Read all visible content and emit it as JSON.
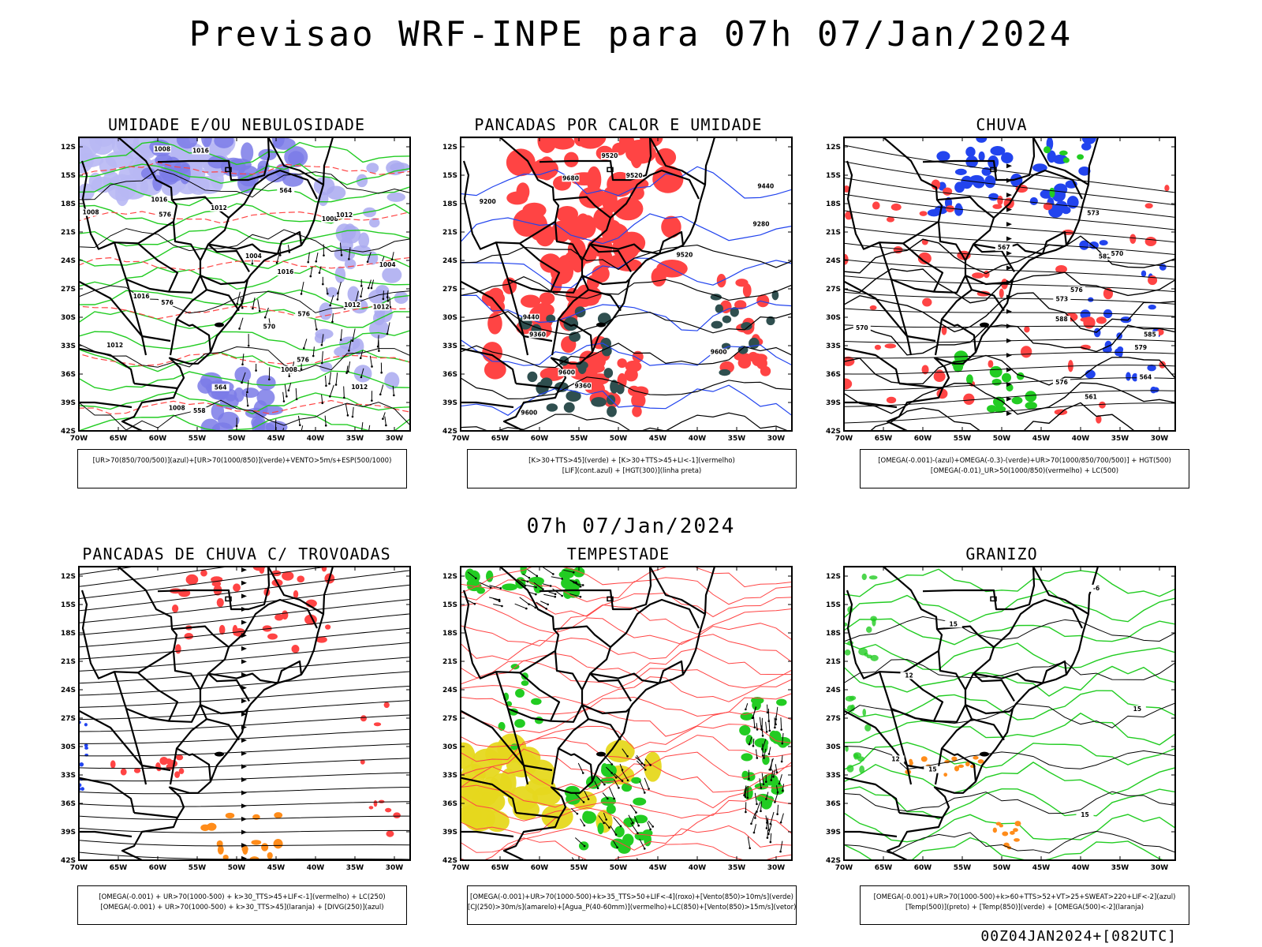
{
  "header": {
    "title": "Previsao WRF-INPE  para 07h 07/Jan/2024",
    "mid_time": "07h 07/Jan/2024",
    "run": "00Z04JAN2024+[082UTC]"
  },
  "axes": {
    "lat_labels": [
      "12S",
      "15S",
      "18S",
      "21S",
      "24S",
      "27S",
      "30S",
      "33S",
      "36S",
      "39S",
      "42S"
    ],
    "lon_labels": [
      "70W",
      "65W",
      "60W",
      "55W",
      "50W",
      "45W",
      "40W",
      "35W",
      "30W"
    ]
  },
  "panels": [
    {
      "id": "umidade",
      "title": "UMIDADE E/OU NEBULOSIDADE",
      "legend": [
        "[UR>70(850/700/500)](azul)+[UR>70(1000/850)](verde)+VENTO>5m/s+ESP(500/1000)"
      ],
      "contour_labels": [
        "1012",
        "1008",
        "1008",
        "1012",
        "1016",
        "1008",
        "1004",
        "1012",
        "1004",
        "1016",
        "1008",
        "1008",
        "1012",
        "1012",
        "1016",
        "1016",
        "1012",
        "576",
        "576",
        "576",
        "570",
        "564",
        "564",
        "558",
        "576"
      ]
    },
    {
      "id": "pancadas-calor",
      "title": "PANCADAS POR CALOR E UMIDADE",
      "legend": [
        "[K>30+TTS>45](verde) + [K>30+TTS>45+LI<-1](vermelho)",
        "[LIF](cont.azul) + [HGT(300)](linha preta)"
      ],
      "contour_labels": [
        "9680",
        "9600",
        "9600",
        "9600",
        "9520",
        "9520",
        "9520",
        "9440",
        "9440",
        "9360",
        "9360",
        "9280",
        "9200"
      ]
    },
    {
      "id": "chuva",
      "title": "CHUVA",
      "legend": [
        "[OMEGA(-0.001)-(azul)+OMEGA(-0.3)-(verde)+UR>70(1000/850/700/500)] + HGT(500)",
        "[OMEGA(-0.01)_UR>50(1000/850)(vermelho) + LC(500)"
      ],
      "contour_labels": [
        "588",
        "585",
        "582",
        "579",
        "576",
        "573",
        "570",
        "567",
        "564",
        "561",
        "576",
        "573",
        "570"
      ]
    },
    {
      "id": "trovoadas",
      "title": "PANCADAS DE CHUVA C/ TROVOADAS",
      "legend": [
        "[OMEGA(-0.001) + UR>70(1000-500) + k>30_TTS>45+LIF<-1](vermelho) + LC(250)",
        "[OMEGA(-0.001) + UR>70(1000-500) + k>30_TTS>45](laranja) + [DIVG(250)](azul)"
      ],
      "contour_labels": []
    },
    {
      "id": "tempestade",
      "title": "TEMPESTADE",
      "legend": [
        "[OMEGA(-0.001)+UR>70(1000-500)+k>35_TTS>50+LIF<-4](roxo)+[Vento(850)>10m/s](verde)",
        "[CJ(250)>30m/s](amarelo)+[Agua_P(40-60mm)](vermelho)+LC(850)+[Vento(850)>15m/s](vetor)"
      ],
      "contour_labels": []
    },
    {
      "id": "granizo",
      "title": "GRANIZO",
      "legend": [
        "[OMEGA(-0.001)+UR>70(1000-500)+k>60+TTS>52+VT>25+SWEAT>220+LIF<-2](azul)",
        "[Temp(500)](preto) + [Temp(850)](verde) + [OMEGA(500)<-2](laranja)"
      ],
      "contour_labels": [
        "-6",
        "15",
        "15",
        "15",
        "12",
        "12",
        "15"
      ]
    }
  ],
  "colors": {
    "border": "#000000",
    "blue_humidity": "#7b7be8",
    "green": "#22cc22",
    "red": "#ff4444",
    "dark_green": "#2f4f4f",
    "orange": "#ff8c1a",
    "yellow": "#e6d81e",
    "blue_line": "#2244ee"
  }
}
